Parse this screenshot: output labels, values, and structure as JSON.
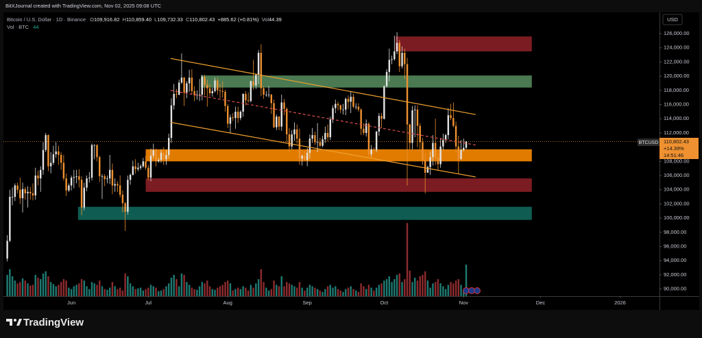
{
  "caption": "BitXJournal created with TradingView.com, Nov 02, 2025 09:08 UTC",
  "branding": "TradingView",
  "chart_data": {
    "type": "candlestick",
    "title": "Bitcoin / U.S. Dollar · 1D · Binance",
    "legend_values": [
      {
        "key": "O",
        "text": "109,916.82"
      },
      {
        "key": "H",
        "text": "110,859.40"
      },
      {
        "key": "L",
        "text": "109,732.33"
      },
      {
        "key": "C",
        "text": "110,802.43"
      }
    ],
    "change": "+885.62 (+0.81%)",
    "volume_key": "Vol",
    "volume_text": "44.39",
    "volume_title": "Vol · BTC",
    "volume_last": "44",
    "currency": "USD",
    "symbol_tag": "BTCUSD",
    "last_price_label": "110,802.43",
    "change_pct": "+14.39%",
    "countdown": "14:51:46",
    "up_color": "#e4e4e4",
    "down_color": "#ef9130",
    "volume_up_color": "#1e7a72",
    "volume_down_color": "#8d2b2e",
    "price_line_color": "#f0962e",
    "grid": false,
    "xlim": [
      -1.5,
      254.4
    ],
    "xticks": [
      {
        "value": 25,
        "label": "Jun"
      },
      {
        "value": 55,
        "label": "Jul"
      },
      {
        "value": 86,
        "label": "Aug"
      },
      {
        "value": 117,
        "label": "Sep"
      },
      {
        "value": 147,
        "label": "Oct"
      },
      {
        "value": 178,
        "label": "Nov"
      },
      {
        "value": 208,
        "label": "Dec"
      },
      {
        "value": 239,
        "label": "2026"
      }
    ],
    "ylim": [
      89000,
      129000
    ],
    "yticks": [
      {
        "value": 90000,
        "label": "90,000.00"
      },
      {
        "value": 92000,
        "label": "92,000.00"
      },
      {
        "value": 94000,
        "label": "94,000.00"
      },
      {
        "value": 96000,
        "label": "96,000.00"
      },
      {
        "value": 98000,
        "label": "98,000.00"
      },
      {
        "value": 100000,
        "label": "100,000.00"
      },
      {
        "value": 102000,
        "label": "102,000.00"
      },
      {
        "value": 104000,
        "label": "104,000.00"
      },
      {
        "value": 106000,
        "label": "106,000.00"
      },
      {
        "value": 108000,
        "label": "108,000.00"
      },
      {
        "value": 110000,
        "label": "110,000.00"
      },
      {
        "value": 112000,
        "label": "112,000.00"
      },
      {
        "value": 114000,
        "label": "114,000.00"
      },
      {
        "value": 116000,
        "label": "116,000.00"
      },
      {
        "value": 118000,
        "label": "118,000.00"
      },
      {
        "value": 120000,
        "label": "120,000.00"
      },
      {
        "value": 122000,
        "label": "122,000.00"
      },
      {
        "value": 124000,
        "label": "124,000.00"
      },
      {
        "value": 126000,
        "label": "126,000.00"
      }
    ],
    "volume_ylim": [
      0,
      110
    ],
    "open": [
      94300,
      96800,
      103000,
      103000,
      104600,
      104000,
      102800,
      104100,
      103500,
      103700,
      103500,
      103200,
      106000,
      105600,
      106800,
      109600,
      111700,
      107300,
      107800,
      109000,
      109400,
      108900,
      107800,
      105600,
      103900,
      104600,
      105700,
      105800,
      105900,
      105400,
      101500,
      104300,
      105600,
      105700,
      110300,
      110300,
      108600,
      105900,
      105900,
      105500,
      105600,
      106800,
      104600,
      104800,
      104600,
      103300,
      102100,
      100900,
      105400,
      106100,
      107300,
      106900,
      107100,
      107300,
      108000,
      107100,
      105700,
      108800,
      109600,
      108000,
      108200,
      109200,
      108300,
      108900,
      111300,
      115900,
      117500,
      117400,
      119100,
      119800,
      117700,
      119000,
      119800,
      117900,
      117300,
      117400,
      117400,
      119900,
      118800,
      118300,
      117600,
      117900,
      119400,
      118000,
      117900,
      117800,
      115800,
      113300,
      114200,
      114100,
      115000,
      114100,
      115000,
      117500,
      116600,
      116500,
      119300,
      118700,
      120200,
      123300,
      118300,
      117400,
      117400,
      117400,
      116200,
      112800,
      114300,
      112900,
      116300,
      115400,
      111800,
      110100,
      111800,
      112500,
      111200,
      108400,
      108800,
      108200,
      109200,
      111200,
      111700,
      110700,
      110700,
      110200,
      111100,
      112000,
      111400,
      113900,
      115500,
      116100,
      115900,
      115300,
      115300,
      116800,
      116400,
      117100,
      115700,
      115700,
      115300,
      112600,
      112000,
      113300,
      109000,
      109700,
      109600,
      112200,
      114400,
      114000,
      118600,
      120600,
      122300,
      122400,
      123500,
      124700,
      121400,
      123300,
      121700,
      113200,
      110600,
      115200,
      115300,
      113000,
      110700,
      108200,
      106400,
      107200,
      108600,
      110600,
      108500,
      107600,
      110100,
      111000,
      111700,
      114500,
      114100,
      113000,
      110100,
      108300,
      109600,
      109916.82
    ],
    "high": [
      97600,
      104000,
      104300,
      104900,
      105000,
      105700,
      105000,
      104400,
      104500,
      104400,
      104900,
      107100,
      106700,
      107300,
      110700,
      112000,
      111800,
      109300,
      110200,
      110700,
      110200,
      109300,
      108900,
      106300,
      104900,
      106000,
      106800,
      106800,
      106900,
      105900,
      105000,
      106000,
      106500,
      110500,
      110400,
      110400,
      108800,
      106200,
      106200,
      106000,
      108900,
      107700,
      105600,
      105200,
      106000,
      103900,
      102300,
      106000,
      106300,
      108100,
      108300,
      107800,
      107600,
      108500,
      108800,
      107500,
      109800,
      110500,
      109800,
      108500,
      109700,
      110000,
      109600,
      111900,
      116900,
      118900,
      118200,
      119500,
      123200,
      119900,
      119300,
      120900,
      121000,
      118600,
      118000,
      119600,
      120200,
      120200,
      119500,
      118900,
      118400,
      119800,
      119800,
      118900,
      119300,
      118100,
      116100,
      114600,
      114800,
      115700,
      115700,
      115200,
      117600,
      117900,
      117700,
      119400,
      122300,
      120300,
      123700,
      124500,
      118600,
      117900,
      118600,
      117500,
      116700,
      114600,
      114400,
      117400,
      116800,
      115600,
      112700,
      112400,
      113500,
      113200,
      112600,
      108900,
      109500,
      109900,
      111800,
      112700,
      112200,
      113400,
      111300,
      111600,
      112900,
      113200,
      114300,
      115900,
      116700,
      116400,
      116000,
      116100,
      117000,
      117300,
      117900,
      117500,
      116200,
      116200,
      115500,
      113400,
      113900,
      113500,
      110300,
      110000,
      112300,
      114800,
      114800,
      118700,
      121000,
      123900,
      122900,
      125700,
      126200,
      125100,
      124200,
      123900,
      122600,
      113300,
      115800,
      115900,
      115900,
      113400,
      111300,
      109200,
      107400,
      109400,
      111700,
      114000,
      109100,
      111300,
      111900,
      111900,
      115500,
      116100,
      116300,
      113600,
      111600,
      111000,
      111200,
      110859.4
    ],
    "low": [
      93900,
      96600,
      101800,
      102400,
      103500,
      102000,
      100800,
      102600,
      101500,
      102600,
      102500,
      102600,
      104600,
      103700,
      106100,
      109300,
      106600,
      106300,
      107500,
      108500,
      107500,
      106800,
      105300,
      103100,
      103700,
      103900,
      104200,
      104900,
      104300,
      100400,
      101100,
      103800,
      105000,
      105300,
      108300,
      108000,
      105100,
      102700,
      104500,
      104900,
      104800,
      103400,
      103700,
      103700,
      102900,
      100800,
      98200,
      100500,
      104700,
      106000,
      106300,
      106600,
      106800,
      107100,
      106800,
      105300,
      105200,
      108400,
      107300,
      107800,
      107800,
      107500,
      107500,
      108400,
      110600,
      115300,
      116900,
      117300,
      118900,
      115800,
      116900,
      117800,
      117400,
      116500,
      116700,
      116500,
      116600,
      117300,
      115700,
      117200,
      117100,
      117700,
      117400,
      116900,
      117000,
      115000,
      112700,
      112000,
      113700,
      112600,
      113400,
      113800,
      114300,
      115900,
      116300,
      116300,
      118100,
      118200,
      118900,
      117200,
      116800,
      117100,
      117000,
      114700,
      112700,
      112400,
      112400,
      112300,
      114500,
      110700,
      109300,
      109700,
      110900,
      110500,
      107500,
      107400,
      108100,
      107300,
      108400,
      110600,
      110300,
      109300,
      110000,
      110000,
      110600,
      110800,
      111000,
      113400,
      114800,
      115200,
      114800,
      114600,
      114500,
      115400,
      114800,
      115500,
      115300,
      115000,
      111700,
      111700,
      111500,
      108700,
      108600,
      109100,
      109300,
      111600,
      112700,
      113900,
      118400,
      119300,
      121700,
      122200,
      123100,
      120600,
      121100,
      119600,
      104600,
      109700,
      109700,
      111400,
      110000,
      109700,
      107500,
      103500,
      106400,
      106100,
      107400,
      107500,
      106700,
      107100,
      109600,
      110600,
      111100,
      113800,
      112800,
      109300,
      106300,
      108300,
      109400,
      109732.33
    ],
    "close": [
      96800,
      103000,
      103000,
      104600,
      104000,
      102800,
      104100,
      103500,
      103700,
      103500,
      103200,
      106000,
      105600,
      106800,
      109600,
      111700,
      107300,
      107800,
      109000,
      109400,
      108900,
      107800,
      105600,
      103900,
      104600,
      105700,
      105800,
      105900,
      105400,
      101500,
      104300,
      105600,
      105700,
      110300,
      110300,
      108600,
      105900,
      105900,
      105500,
      105600,
      106800,
      104600,
      104800,
      104600,
      103300,
      102100,
      100900,
      105400,
      106100,
      107300,
      106900,
      107100,
      107300,
      108000,
      107100,
      105700,
      108800,
      109600,
      108000,
      108200,
      109200,
      108300,
      108900,
      111300,
      115900,
      117500,
      117400,
      119100,
      119800,
      117700,
      119000,
      119800,
      117900,
      117300,
      117400,
      117400,
      119900,
      118800,
      118300,
      117600,
      117900,
      119400,
      118000,
      117900,
      117800,
      115800,
      113300,
      114200,
      114100,
      115000,
      114100,
      115000,
      117500,
      116600,
      116500,
      119300,
      118700,
      120200,
      123300,
      118300,
      117400,
      117400,
      117400,
      116200,
      112800,
      114300,
      112900,
      116300,
      115400,
      111800,
      110100,
      111800,
      112500,
      111200,
      108400,
      108800,
      108200,
      109200,
      111200,
      111700,
      110700,
      110700,
      110200,
      111100,
      112000,
      111400,
      113900,
      115500,
      116100,
      115900,
      115300,
      115300,
      116800,
      116400,
      117100,
      115700,
      115700,
      115300,
      112600,
      112000,
      113300,
      109000,
      109700,
      109600,
      112200,
      114400,
      114000,
      118600,
      120600,
      122300,
      122400,
      123500,
      124700,
      121400,
      123300,
      121700,
      113200,
      110600,
      115200,
      115300,
      113000,
      110700,
      108200,
      106400,
      107200,
      108600,
      110600,
      108500,
      107600,
      110100,
      111000,
      111700,
      114500,
      114100,
      113000,
      110100,
      108300,
      109600,
      109900,
      110802.43
    ],
    "volume": [
      30,
      38,
      28,
      22,
      18,
      20,
      25,
      22,
      18,
      15,
      16,
      30,
      26,
      24,
      32,
      35,
      28,
      20,
      17,
      14,
      16,
      20,
      24,
      22,
      12,
      10,
      14,
      16,
      18,
      24,
      22,
      14,
      10,
      20,
      18,
      16,
      22,
      14,
      10,
      9,
      12,
      20,
      14,
      10,
      12,
      8,
      32,
      28,
      18,
      14,
      10,
      11,
      12,
      8,
      10,
      12,
      16,
      14,
      12,
      7,
      8,
      10,
      14,
      18,
      26,
      30,
      24,
      14,
      32,
      30,
      20,
      16,
      12,
      10,
      9,
      14,
      20,
      18,
      22,
      14,
      10,
      9,
      12,
      14,
      16,
      20,
      22,
      18,
      8,
      10,
      12,
      10,
      14,
      12,
      8,
      16,
      12,
      18,
      24,
      38,
      20,
      12,
      8,
      10,
      22,
      16,
      14,
      28,
      14,
      20,
      18,
      16,
      14,
      12,
      20,
      12,
      8,
      12,
      16,
      14,
      12,
      10,
      8,
      6,
      10,
      14,
      16,
      12,
      14,
      10,
      8,
      6,
      10,
      12,
      14,
      10,
      8,
      6,
      18,
      14,
      10,
      16,
      12,
      8,
      12,
      16,
      18,
      22,
      24,
      28,
      20,
      24,
      30,
      32,
      20,
      24,
      103,
      36,
      20,
      26,
      22,
      28,
      30,
      35,
      22,
      12,
      18,
      20,
      24,
      18,
      14,
      10,
      16,
      20,
      18,
      22,
      24,
      16,
      8,
      44.39
    ],
    "zones": [
      {
        "x0": 151.4,
        "x1": 204.6,
        "y0": 123500,
        "y1": 125600,
        "color": "#7b1c22"
      },
      {
        "x0": 75.5,
        "x1": 204.6,
        "y0": 118400,
        "y1": 120100,
        "color": "#4b7a52"
      },
      {
        "x0": 54.0,
        "x1": 204.6,
        "y0": 108000,
        "y1": 109700,
        "color": "#e07b00"
      },
      {
        "x0": 54.0,
        "x1": 204.6,
        "y0": 103700,
        "y1": 105600,
        "color": "#7b1c22"
      },
      {
        "x0": 27.6,
        "x1": 204.6,
        "y0": 99750,
        "y1": 101600,
        "color": "#0f5c52"
      }
    ],
    "trendlines": [
      {
        "x": [
          63.7,
          182.7
        ],
        "y": [
          122500,
          114600
        ],
        "color": "#f0a030",
        "dashed": false
      },
      {
        "x": [
          63.7,
          182.7
        ],
        "y": [
          113500,
          105800
        ],
        "color": "#f0a030",
        "dashed": false
      },
      {
        "x": [
          63.7,
          182.7
        ],
        "y": [
          118000,
          110300
        ],
        "color": "#e05050",
        "dashed": true
      }
    ]
  }
}
